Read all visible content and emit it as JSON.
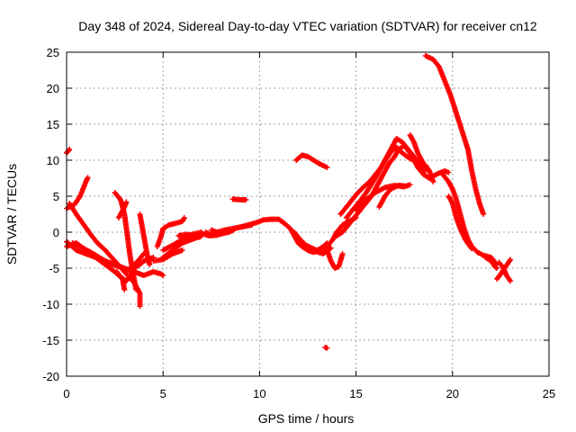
{
  "chart_data": {
    "type": "scatter",
    "title": "Day 348 of 2024, Sidereal Day-to-day VTEC variation (SDTVAR) for receiver cn12",
    "xlabel": "GPS time / hours",
    "ylabel": "SDTVAR / TECUs",
    "xlim": [
      0,
      25
    ],
    "ylim": [
      -20,
      25
    ],
    "xticks": [
      0,
      5,
      10,
      15,
      20,
      25
    ],
    "yticks": [
      -20,
      -15,
      -10,
      -5,
      0,
      5,
      10,
      15,
      20,
      25
    ],
    "grid": true,
    "marker": "+",
    "color": "#ff0000",
    "series": [
      {
        "name": "s01",
        "points": [
          [
            0.0,
            11.0
          ],
          [
            0.15,
            11.5
          ]
        ]
      },
      {
        "name": "s02",
        "points": [
          [
            0.0,
            3.3
          ],
          [
            0.4,
            3.8
          ],
          [
            0.7,
            5.0
          ],
          [
            1.0,
            7.0
          ],
          [
            1.1,
            7.6
          ]
        ]
      },
      {
        "name": "s03",
        "points": [
          [
            0.15,
            4.0
          ],
          [
            0.5,
            2.5
          ],
          [
            0.9,
            1.0
          ],
          [
            1.3,
            -0.5
          ],
          [
            1.6,
            -1.5
          ],
          [
            2.0,
            -2.5
          ],
          [
            2.5,
            -4.0
          ],
          [
            3.0,
            -5.5
          ],
          [
            3.5,
            -7.0
          ],
          [
            3.8,
            -8.5
          ],
          [
            3.8,
            -10.3
          ]
        ]
      },
      {
        "name": "s04",
        "points": [
          [
            0.0,
            -2.0
          ],
          [
            0.5,
            -1.5
          ],
          [
            1.0,
            -2.5
          ],
          [
            1.5,
            -3.5
          ],
          [
            2.0,
            -4.5
          ],
          [
            2.5,
            -5.5
          ],
          [
            2.9,
            -6.5
          ],
          [
            3.0,
            -8.0
          ]
        ]
      },
      {
        "name": "s05",
        "points": [
          [
            0.0,
            -1.3
          ],
          [
            0.5,
            -2.5
          ],
          [
            1.0,
            -3.0
          ],
          [
            1.5,
            -3.5
          ],
          [
            2.0,
            -4.0
          ],
          [
            2.5,
            -4.5
          ],
          [
            3.0,
            -5.0
          ],
          [
            3.5,
            -5.5
          ],
          [
            4.0,
            -6.0
          ]
        ]
      },
      {
        "name": "s06",
        "points": [
          [
            0.3,
            -1.5
          ],
          [
            0.7,
            -2.0
          ],
          [
            1.2,
            -2.7
          ],
          [
            1.7,
            -3.5
          ],
          [
            2.2,
            -4.3
          ],
          [
            2.7,
            -4.8
          ],
          [
            3.2,
            -5.2
          ],
          [
            3.7,
            -4.0
          ],
          [
            4.0,
            -3.0
          ]
        ]
      },
      {
        "name": "s07",
        "points": [
          [
            2.5,
            5.5
          ],
          [
            2.8,
            4.5
          ],
          [
            3.0,
            2.5
          ],
          [
            3.1,
            0.5
          ],
          [
            3.2,
            -1.5
          ],
          [
            3.3,
            -3.5
          ],
          [
            3.4,
            -5.0
          ],
          [
            3.5,
            -6.5
          ],
          [
            3.6,
            -8.0
          ]
        ]
      },
      {
        "name": "s08",
        "points": [
          [
            2.7,
            2.0
          ],
          [
            3.0,
            3.5
          ],
          [
            3.1,
            4.2
          ]
        ]
      },
      {
        "name": "s09",
        "points": [
          [
            2.6,
            -5.5
          ],
          [
            2.8,
            -6.2
          ],
          [
            3.1,
            -6.8
          ],
          [
            3.3,
            -6.0
          ],
          [
            3.5,
            -5.0
          ],
          [
            3.8,
            -4.5
          ],
          [
            4.0,
            -4.0
          ],
          [
            4.5,
            -3.5
          ]
        ]
      },
      {
        "name": "s10",
        "points": [
          [
            3.8,
            2.5
          ],
          [
            3.9,
            1.0
          ],
          [
            4.0,
            -0.5
          ],
          [
            4.1,
            -2.0
          ],
          [
            4.2,
            -3.5
          ],
          [
            4.3,
            -4.5
          ]
        ]
      },
      {
        "name": "s11",
        "points": [
          [
            4.0,
            -6.0
          ],
          [
            4.5,
            -5.5
          ],
          [
            4.9,
            -5.8
          ],
          [
            5.0,
            -6.0
          ]
        ]
      },
      {
        "name": "s12",
        "points": [
          [
            4.7,
            -2.0
          ],
          [
            4.9,
            -0.5
          ],
          [
            5.0,
            0.5
          ],
          [
            5.3,
            1.0
          ],
          [
            5.6,
            1.2
          ],
          [
            6.0,
            1.5
          ],
          [
            6.1,
            2.0
          ]
        ]
      },
      {
        "name": "s13",
        "points": [
          [
            5.0,
            -3.5
          ],
          [
            5.5,
            -2.5
          ],
          [
            6.0,
            -1.5
          ],
          [
            6.5,
            -1.0
          ],
          [
            7.0,
            -0.5
          ]
        ]
      },
      {
        "name": "s14",
        "points": [
          [
            5.0,
            -2.5
          ],
          [
            5.5,
            -1.8
          ],
          [
            6.0,
            -1.0
          ],
          [
            6.5,
            -0.3
          ],
          [
            7.0,
            0.0
          ]
        ]
      },
      {
        "name": "s15",
        "points": [
          [
            5.8,
            -0.5
          ],
          [
            6.2,
            -0.3
          ],
          [
            6.6,
            -0.5
          ],
          [
            6.9,
            -0.7
          ]
        ]
      },
      {
        "name": "s16",
        "points": [
          [
            4.5,
            -4.0
          ],
          [
            5.0,
            -3.8
          ],
          [
            5.5,
            -3.0
          ],
          [
            6.0,
            -2.5
          ]
        ]
      },
      {
        "name": "s17",
        "points": [
          [
            7.2,
            0.0
          ],
          [
            7.5,
            -0.4
          ],
          [
            7.8,
            0.0
          ],
          [
            8.2,
            0.3
          ],
          [
            8.6,
            0.5
          ],
          [
            9.0,
            0.7
          ],
          [
            9.4,
            1.0
          ],
          [
            9.8,
            1.3
          ],
          [
            10.2,
            1.7
          ],
          [
            10.6,
            1.8
          ],
          [
            11.0,
            1.8
          ],
          [
            11.3,
            1.2
          ],
          [
            11.6,
            0.5
          ],
          [
            11.8,
            -0.5
          ],
          [
            12.0,
            -1.5
          ],
          [
            12.2,
            -2.0
          ],
          [
            12.5,
            -2.5
          ],
          [
            12.8,
            -2.8
          ],
          [
            13.0,
            -2.5
          ],
          [
            13.3,
            -2.0
          ],
          [
            13.5,
            -1.5
          ]
        ]
      },
      {
        "name": "s18",
        "points": [
          [
            7.5,
            0.3
          ],
          [
            8.0,
            -0.2
          ],
          [
            8.4,
            0.0
          ],
          [
            8.8,
            0.6
          ],
          [
            9.2,
            0.8
          ],
          [
            9.6,
            1.0
          ]
        ]
      },
      {
        "name": "s19",
        "points": [
          [
            7.0,
            -0.2
          ],
          [
            7.4,
            -0.5
          ],
          [
            7.8,
            -0.4
          ],
          [
            8.2,
            -0.1
          ],
          [
            8.6,
            0.2
          ]
        ]
      },
      {
        "name": "s20",
        "points": [
          [
            8.6,
            4.6
          ],
          [
            9.0,
            4.5
          ],
          [
            9.3,
            4.5
          ]
        ]
      },
      {
        "name": "s21",
        "points": [
          [
            11.8,
            0.0
          ],
          [
            12.1,
            -1.0
          ],
          [
            12.4,
            -1.8
          ],
          [
            12.8,
            -2.3
          ],
          [
            13.2,
            -2.8
          ],
          [
            13.5,
            -2.0
          ],
          [
            13.8,
            -1.0
          ],
          [
            14.0,
            0.0
          ],
          [
            14.3,
            1.0
          ],
          [
            14.6,
            1.5
          ],
          [
            15.0,
            2.0
          ]
        ]
      },
      {
        "name": "s22",
        "points": [
          [
            12.0,
            -1.3
          ],
          [
            12.4,
            -2.2
          ],
          [
            12.8,
            -2.6
          ],
          [
            13.3,
            -3.0
          ],
          [
            13.7,
            -2.2
          ]
        ]
      },
      {
        "name": "s23",
        "points": [
          [
            11.9,
            10.0
          ],
          [
            12.2,
            10.7
          ],
          [
            12.5,
            10.5
          ],
          [
            12.8,
            10.0
          ],
          [
            13.1,
            9.5
          ],
          [
            13.5,
            9.0
          ]
        ]
      },
      {
        "name": "s24",
        "points": [
          [
            13.4,
            -16.0
          ],
          [
            13.5,
            -16.1
          ]
        ]
      },
      {
        "name": "s25",
        "points": [
          [
            13.5,
            -2.5
          ],
          [
            13.7,
            -4.0
          ],
          [
            13.9,
            -5.0
          ],
          [
            14.1,
            -4.8
          ],
          [
            14.3,
            -3.0
          ]
        ]
      },
      {
        "name": "s26",
        "points": [
          [
            14.0,
            -0.5
          ],
          [
            14.3,
            0.0
          ],
          [
            14.6,
            1.0
          ],
          [
            14.9,
            2.0
          ],
          [
            15.2,
            3.0
          ],
          [
            15.5,
            4.0
          ],
          [
            15.8,
            5.0
          ],
          [
            16.1,
            6.5
          ],
          [
            16.4,
            8.0
          ],
          [
            16.7,
            9.5
          ],
          [
            17.0,
            10.5
          ],
          [
            17.2,
            11.5
          ],
          [
            17.5,
            12.0
          ],
          [
            17.8,
            11.0
          ],
          [
            18.0,
            10.0
          ],
          [
            18.2,
            9.0
          ],
          [
            18.5,
            8.0
          ],
          [
            18.8,
            7.5
          ],
          [
            19.0,
            7.8
          ],
          [
            19.3,
            8.2
          ],
          [
            19.6,
            8.5
          ],
          [
            19.8,
            8.3
          ]
        ]
      },
      {
        "name": "s27",
        "points": [
          [
            14.5,
            2.0
          ],
          [
            14.8,
            3.0
          ],
          [
            15.1,
            4.0
          ],
          [
            15.4,
            5.0
          ],
          [
            15.7,
            6.2
          ],
          [
            16.0,
            7.5
          ],
          [
            16.3,
            9.0
          ],
          [
            16.6,
            10.5
          ],
          [
            16.9,
            12.0
          ],
          [
            17.1,
            13.0
          ],
          [
            17.4,
            12.5
          ],
          [
            17.7,
            11.5
          ],
          [
            18.0,
            10.5
          ],
          [
            18.3,
            9.5
          ],
          [
            18.6,
            8.5
          ]
        ]
      },
      {
        "name": "s28",
        "points": [
          [
            14.2,
            2.5
          ],
          [
            14.5,
            3.5
          ],
          [
            14.8,
            4.5
          ],
          [
            15.1,
            5.5
          ],
          [
            15.4,
            6.3
          ],
          [
            15.7,
            7.0
          ],
          [
            16.0,
            8.0
          ],
          [
            16.3,
            9.0
          ],
          [
            16.6,
            10.3
          ],
          [
            16.9,
            11.5
          ],
          [
            17.1,
            11.8
          ],
          [
            17.4,
            11.0
          ],
          [
            17.8,
            10.2
          ],
          [
            18.2,
            9.8
          ],
          [
            18.6,
            9.3
          ],
          [
            18.8,
            8.5
          ]
        ]
      },
      {
        "name": "s29",
        "points": [
          [
            15.0,
            3.0
          ],
          [
            15.5,
            4.5
          ],
          [
            16.0,
            5.5
          ],
          [
            16.5,
            6.2
          ],
          [
            17.0,
            6.5
          ],
          [
            17.5,
            6.3
          ]
        ]
      },
      {
        "name": "s30",
        "points": [
          [
            16.2,
            3.5
          ],
          [
            16.5,
            5.0
          ],
          [
            16.8,
            6.0
          ],
          [
            17.2,
            6.5
          ],
          [
            17.6,
            6.4
          ],
          [
            17.8,
            6.6
          ]
        ]
      },
      {
        "name": "s31",
        "points": [
          [
            17.8,
            13.5
          ],
          [
            18.0,
            12.5
          ],
          [
            18.2,
            11.0
          ],
          [
            18.5,
            9.5
          ],
          [
            18.8,
            8.5
          ],
          [
            19.0,
            7.0
          ]
        ]
      },
      {
        "name": "s32",
        "points": [
          [
            18.6,
            24.5
          ],
          [
            19.0,
            24.0
          ],
          [
            19.3,
            23.0
          ],
          [
            19.6,
            21.0
          ],
          [
            19.9,
            19.0
          ],
          [
            20.2,
            16.5
          ],
          [
            20.5,
            14.0
          ],
          [
            20.8,
            11.5
          ],
          [
            21.0,
            8.5
          ],
          [
            21.2,
            6.0
          ],
          [
            21.4,
            4.0
          ],
          [
            21.6,
            2.5
          ]
        ]
      },
      {
        "name": "s33",
        "points": [
          [
            19.5,
            8.0
          ],
          [
            19.8,
            7.0
          ],
          [
            20.0,
            6.0
          ],
          [
            20.2,
            4.5
          ],
          [
            20.4,
            2.5
          ],
          [
            20.6,
            0.5
          ],
          [
            20.8,
            -1.0
          ],
          [
            21.0,
            -2.0
          ],
          [
            21.3,
            -2.8
          ],
          [
            21.6,
            -3.2
          ],
          [
            22.0,
            -3.5
          ],
          [
            22.3,
            -4.5
          ]
        ]
      },
      {
        "name": "s34",
        "points": [
          [
            19.8,
            5.0
          ],
          [
            20.0,
            4.0
          ],
          [
            20.2,
            2.0
          ],
          [
            20.4,
            0.5
          ],
          [
            20.7,
            -1.2
          ],
          [
            21.0,
            -2.3
          ]
        ]
      },
      {
        "name": "s35",
        "points": [
          [
            21.7,
            -3.5
          ],
          [
            22.0,
            -4.0
          ],
          [
            22.2,
            -4.8
          ],
          [
            22.3,
            -5.0
          ]
        ]
      },
      {
        "name": "s36",
        "points": [
          [
            22.3,
            -6.5
          ],
          [
            22.5,
            -5.8
          ],
          [
            22.7,
            -5.0
          ],
          [
            22.9,
            -4.2
          ],
          [
            23.0,
            -3.8
          ]
        ]
      },
      {
        "name": "s37",
        "points": [
          [
            22.4,
            -4.2
          ],
          [
            22.6,
            -4.8
          ],
          [
            22.8,
            -6.0
          ],
          [
            23.0,
            -6.8
          ]
        ]
      }
    ]
  }
}
